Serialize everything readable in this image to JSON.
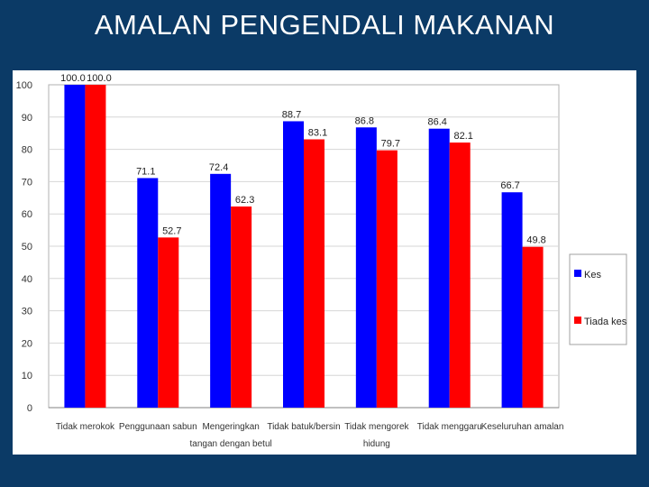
{
  "slide": {
    "title": "AMALAN PENGENDALI MAKANAN"
  },
  "chart_data": {
    "type": "bar",
    "categories": [
      [
        "Tidak merokok"
      ],
      [
        "Penggunaan sabun"
      ],
      [
        "Mengeringkan",
        "tangan dengan betul"
      ],
      [
        "Tidak batuk/bersin"
      ],
      [
        "Tidak mengorek",
        "hidung"
      ],
      [
        "Tidak menggaru"
      ],
      [
        "Keseluruhan amalan"
      ]
    ],
    "series": [
      {
        "name": "Kes",
        "color": "#0000ff",
        "values": [
          100.0,
          71.1,
          72.4,
          88.7,
          86.8,
          86.4,
          66.7
        ],
        "labels": [
          "100.0",
          "71.1",
          "72.4",
          "88.7",
          "86.8",
          "86.4",
          "66.7"
        ]
      },
      {
        "name": "Tiada kes",
        "color": "#ff0000",
        "values": [
          100.0,
          52.7,
          62.3,
          83.1,
          79.7,
          82.1,
          49.8
        ],
        "labels": [
          "100.0",
          "52.7",
          "62.3",
          "83.1",
          "79.7",
          "82.1",
          "49.8"
        ]
      }
    ],
    "yticks": [
      "0",
      "10",
      "20",
      "30",
      "40",
      "50",
      "60",
      "70",
      "80",
      "90",
      "100"
    ],
    "ylim": [
      0,
      100
    ],
    "grid": true,
    "legend": "right",
    "title": "",
    "xlabel": "",
    "ylabel": ""
  }
}
